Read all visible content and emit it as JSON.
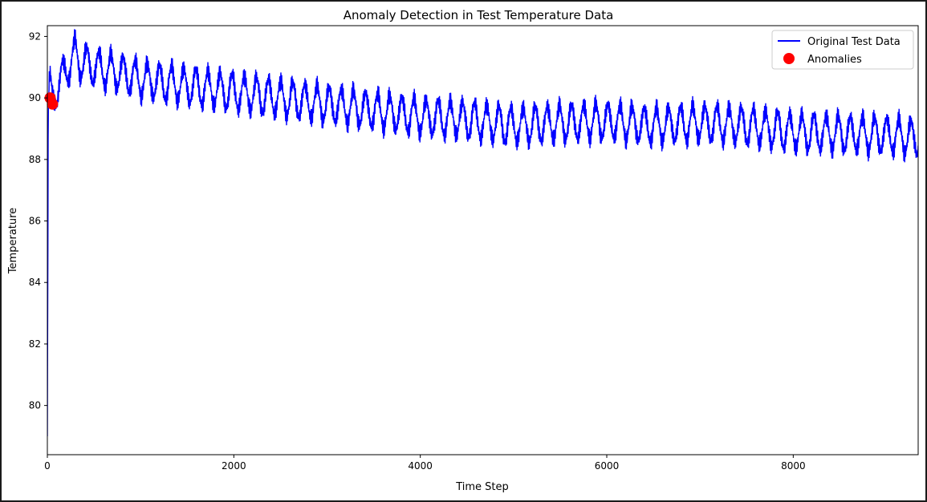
{
  "chart_data": {
    "type": "line",
    "title": "Anomaly Detection in Test Temperature Data",
    "xlabel": "Time Step",
    "ylabel": "Temperature",
    "xlim": [
      0,
      9340
    ],
    "ylim": [
      78.4,
      92.35
    ],
    "xticks": [
      0,
      2000,
      4000,
      6000,
      8000
    ],
    "yticks": [
      80,
      82,
      84,
      86,
      88,
      90,
      92
    ],
    "grid": false,
    "legend_position": "top-right",
    "series": [
      {
        "name": "Original Test Data",
        "kind": "line",
        "color": "#0000ff",
        "approx_points": [
          [
            0,
            79.0
          ],
          [
            5,
            84.0
          ],
          [
            10,
            89.8
          ],
          [
            30,
            90.3
          ],
          [
            50,
            89.9
          ],
          [
            80,
            90.2
          ],
          [
            150,
            90.6
          ],
          [
            200,
            90.9
          ],
          [
            250,
            91.2
          ],
          [
            300,
            91.4
          ],
          [
            350,
            91.2
          ],
          [
            500,
            91.0
          ],
          [
            800,
            90.8
          ],
          [
            1000,
            90.6
          ],
          [
            1500,
            90.4
          ],
          [
            2000,
            90.2
          ],
          [
            2500,
            90.0
          ],
          [
            3000,
            89.8
          ],
          [
            3500,
            89.6
          ],
          [
            4000,
            89.4
          ],
          [
            4500,
            89.3
          ],
          [
            5000,
            89.1
          ],
          [
            5500,
            89.2
          ],
          [
            6000,
            89.25
          ],
          [
            6500,
            89.1
          ],
          [
            7000,
            89.2
          ],
          [
            7500,
            89.1
          ],
          [
            8000,
            88.9
          ],
          [
            8500,
            88.85
          ],
          [
            9000,
            88.8
          ],
          [
            9340,
            88.7
          ]
        ],
        "oscillation_amplitude": 0.55,
        "oscillation_period": 130
      },
      {
        "name": "Anomalies",
        "kind": "scatter",
        "color": "#ff0000",
        "points": [
          [
            30,
            90.0
          ],
          [
            55,
            89.8
          ]
        ]
      }
    ]
  }
}
